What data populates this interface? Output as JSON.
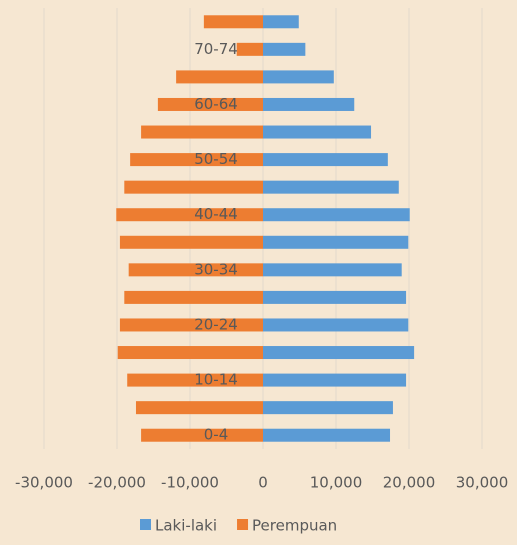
{
  "chart_data": {
    "type": "bar",
    "orientation": "horizontal",
    "stacked": true,
    "categories": [
      "0-4",
      null,
      "10-14",
      null,
      "20-24",
      null,
      "30-34",
      null,
      "40-44",
      null,
      "50-54",
      null,
      "60-64",
      null,
      "70-74",
      null
    ],
    "series": [
      {
        "name": "Laki-laki",
        "color": "#5b9bd5",
        "values": [
          17400,
          17800,
          19600,
          20700,
          19900,
          19600,
          19000,
          19900,
          20100,
          18600,
          17100,
          14800,
          12500,
          9700,
          5800,
          4900
        ]
      },
      {
        "name": "Perempuan",
        "color": "#ed7d31",
        "values": [
          -16700,
          -17400,
          -18600,
          -19900,
          -19600,
          -19000,
          -18400,
          -19600,
          -20100,
          -19000,
          -18200,
          -16700,
          -14400,
          -11900,
          -3600,
          -8100
        ]
      }
    ],
    "xlim": [
      -30000,
      30000
    ],
    "xticks": [
      {
        "value": -30000,
        "label": "-30,000"
      },
      {
        "value": -20000,
        "label": "-20,000"
      },
      {
        "value": -10000,
        "label": "-10,000"
      },
      0,
      {
        "value": 10000,
        "label": "10,000"
      },
      {
        "value": 20000,
        "label": "20,000"
      },
      {
        "value": 30000,
        "label": "30,000"
      }
    ],
    "grid": true,
    "legend": "bottom"
  }
}
